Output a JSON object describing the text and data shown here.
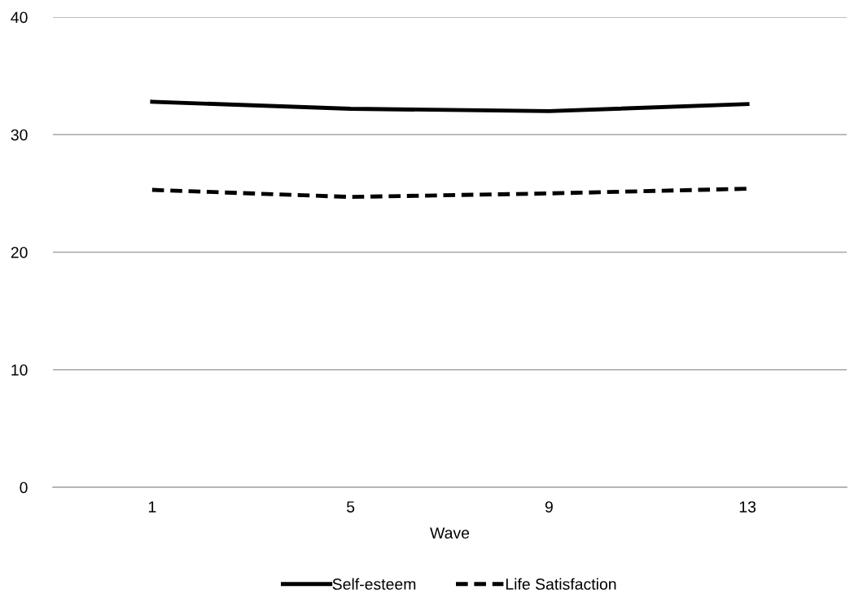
{
  "chart_data": {
    "type": "line",
    "xlabel": "Wave",
    "categories": [
      "1",
      "5",
      "9",
      "13"
    ],
    "series": [
      {
        "name": "Self-esteem",
        "color": "#000000",
        "line_style": "solid",
        "values": [
          32.8,
          32.2,
          32.0,
          32.6
        ]
      },
      {
        "name": "Life Satisfaction",
        "color": "#000000",
        "line_style": "dashed",
        "values": [
          25.3,
          24.7,
          25.0,
          25.4
        ]
      }
    ],
    "ylim": [
      0,
      40
    ],
    "yticks": [
      0,
      10,
      20,
      30,
      40
    ],
    "grid": "y",
    "legend": "bottom",
    "marker": "none"
  }
}
